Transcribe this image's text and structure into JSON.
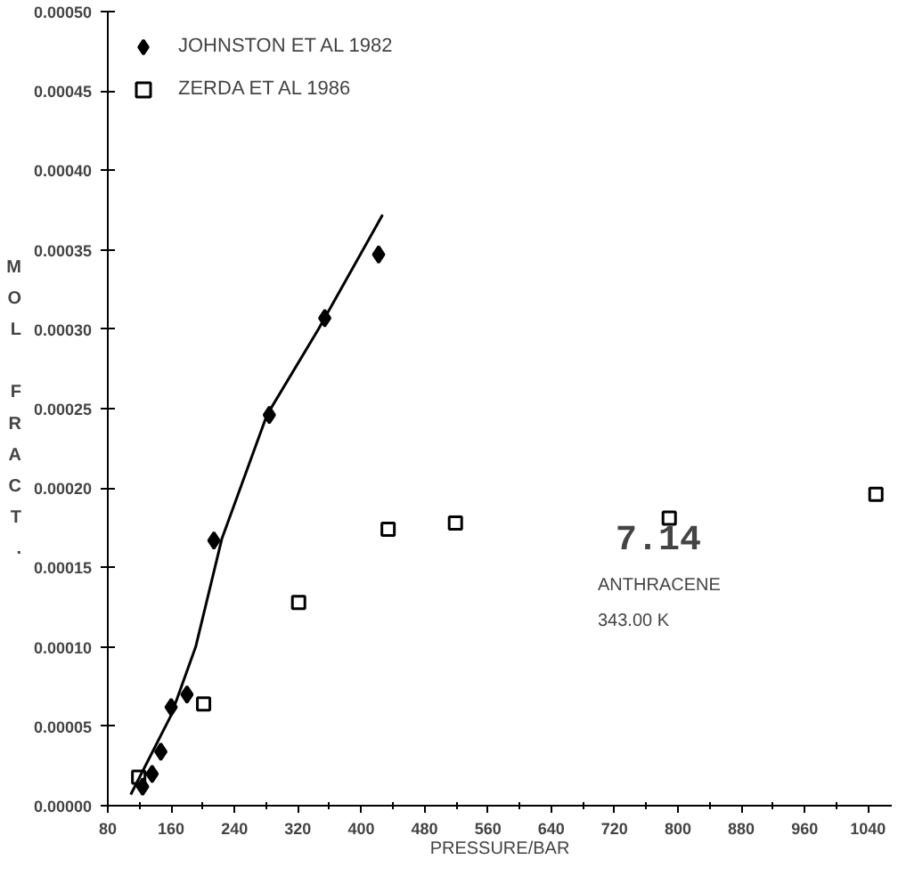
{
  "chart_data": {
    "type": "scatter",
    "xlabel": "PRESSURE/BAR",
    "ylabel": "MOL FRACT.",
    "xlim": [
      80,
      1070
    ],
    "xticks": [
      80,
      160,
      240,
      320,
      400,
      480,
      560,
      640,
      720,
      800,
      880,
      960,
      1040
    ],
    "ylim": [
      0,
      0.0005
    ],
    "yticks": [
      {
        "value": 0,
        "label": "0.00000"
      },
      {
        "value": 5e-05,
        "label": "0.00005"
      },
      {
        "value": 0.0001,
        "label": "0.00010"
      },
      {
        "value": 0.00015,
        "label": "0.00015"
      },
      {
        "value": 0.0002,
        "label": "0.00020"
      },
      {
        "value": 0.00025,
        "label": "0.00025"
      },
      {
        "value": 0.0003,
        "label": "0.00030"
      },
      {
        "value": 0.00035,
        "label": "0.00035"
      },
      {
        "value": 0.0004,
        "label": "0.00040"
      },
      {
        "value": 0.00045,
        "label": "0.00045"
      },
      {
        "value": 0.0005,
        "label": "0.00050"
      }
    ],
    "grid": false,
    "legend": "top left",
    "annotations": [
      "7.14",
      "ANTHRACENE",
      "343.00 K"
    ],
    "series": [
      {
        "name": "JOHNSTON ET AL 1982",
        "color": "#000000",
        "marker": "diamond",
        "x": [
          124,
          136,
          147,
          160,
          180,
          214,
          284,
          354,
          422
        ],
        "values": [
          1.2e-05,
          2e-05,
          3.4e-05,
          6.2e-05,
          7e-05,
          0.000167,
          0.000246,
          0.000307,
          0.000347
        ]
      },
      {
        "name": "ZERDA ET AL 1986",
        "color": "#000000",
        "marker": "square",
        "x": [
          119,
          201,
          321,
          434,
          519,
          789,
          1050
        ],
        "values": [
          1.8e-05,
          6.4e-05,
          0.000128,
          0.000174,
          0.000178,
          0.000181,
          0.000196
        ]
      },
      {
        "type": "line",
        "color": "#000000",
        "line_style": "solid",
        "x": [
          109,
          160,
          191,
          224,
          281,
          346,
          427
        ],
        "values": [
          7e-06,
          5.7e-05,
          0.0001,
          0.000168,
          0.000246,
          0.0003,
          0.000372
        ]
      }
    ]
  }
}
